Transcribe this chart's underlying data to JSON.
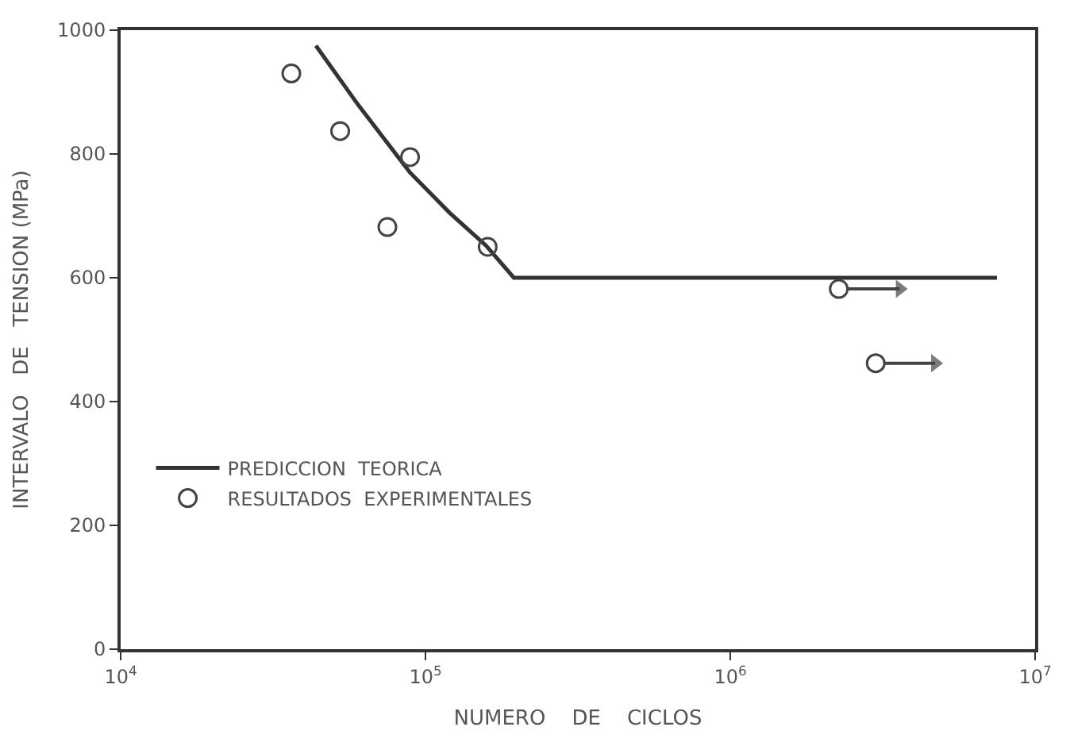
{
  "chart_data": {
    "type": "line",
    "xlabel": "NUMERO    DE    CICLOS",
    "ylabel": "INTERVALO   DE   TENSION (MPa)",
    "log": "x",
    "xlim": [
      10000,
      10000000
    ],
    "ylim": [
      0,
      1000
    ],
    "xticks": [
      {
        "value": 10000,
        "label": "10$^{4}$"
      },
      {
        "value": 100000,
        "label": "10$^{5}$"
      },
      {
        "value": 1000000,
        "label": "10$^{6}$"
      },
      {
        "value": 10000000,
        "label": "10$^{7}$"
      }
    ],
    "yticks": [
      0,
      200,
      400,
      600,
      800,
      1000
    ],
    "legend": "bottom left",
    "series": [
      {
        "name": "PREDICCION  TEORICA",
        "type": "line",
        "color": "#333333",
        "marker": "none",
        "line_style": "solid",
        "x": [
          43700,
          60000,
          89000,
          120000,
          158000,
          195000,
          7500000
        ],
        "values": [
          975,
          880,
          770,
          705,
          652,
          600,
          600
        ]
      },
      {
        "name": "RESULTADOS  EXPERIMENTALES",
        "type": "scatter",
        "color": "#444444",
        "marker": "circle",
        "x": [
          36300,
          52500,
          75000,
          89000,
          160000,
          2270000,
          3000000
        ],
        "values": [
          930,
          837,
          682,
          795,
          650,
          582,
          462
        ]
      },
      {
        "color": "#444444",
        "marker": "triangle",
        "x": [
          2400000,
          3600000
        ],
        "values": [
          582,
          582
        ]
      },
      {
        "color": "#444444",
        "marker": "triangle",
        "x": [
          3200000,
          4700000
        ],
        "values": [
          462,
          462
        ]
      }
    ]
  }
}
